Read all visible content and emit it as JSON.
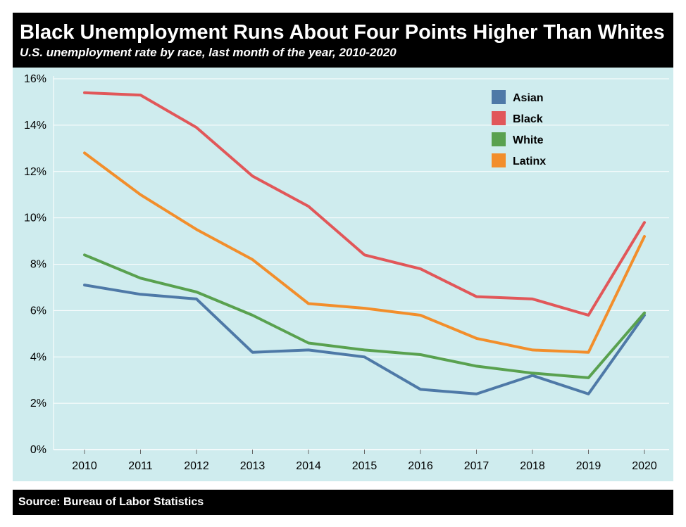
{
  "header": {
    "title": "Black Unemployment Runs About Four Points Higher Than Whites",
    "subtitle": "U.S. unemployment rate by race, last month of the year, 2010-2020"
  },
  "footer": {
    "source": "Source: Bureau of Labor Statistics"
  },
  "colors": {
    "plot_background": "#cfecee",
    "gridline": "#ffffff",
    "header_background": "#000000",
    "header_text": "#ffffff"
  },
  "chart_data": {
    "type": "line",
    "title": "Black Unemployment Runs About Four Points Higher Than Whites",
    "subtitle": "U.S. unemployment rate by race, last month of the year, 2010-2020",
    "xlabel": "",
    "ylabel": "",
    "x": [
      2010,
      2011,
      2012,
      2013,
      2014,
      2015,
      2016,
      2017,
      2018,
      2019,
      2020
    ],
    "y_ticks": [
      "0%",
      "2%",
      "4%",
      "6%",
      "8%",
      "10%",
      "12%",
      "14%",
      "16%"
    ],
    "ylim": [
      0,
      16
    ],
    "grid": true,
    "legend_position": "top-right",
    "series": [
      {
        "name": "Asian",
        "color": "#4e79a7",
        "values": [
          7.1,
          6.7,
          6.5,
          4.2,
          4.3,
          4.0,
          2.6,
          2.4,
          3.2,
          2.4,
          5.8
        ]
      },
      {
        "name": "Black",
        "color": "#e15759",
        "values": [
          15.4,
          15.3,
          13.9,
          11.8,
          10.5,
          8.4,
          7.8,
          6.6,
          6.5,
          5.8,
          9.8
        ]
      },
      {
        "name": "White",
        "color": "#59a14f",
        "values": [
          8.4,
          7.4,
          6.8,
          5.8,
          4.6,
          4.3,
          4.1,
          3.6,
          3.3,
          3.1,
          5.9
        ]
      },
      {
        "name": "Latinx",
        "color": "#f28e2b",
        "values": [
          12.8,
          11.0,
          9.5,
          8.2,
          6.3,
          6.1,
          5.8,
          4.8,
          4.3,
          4.2,
          9.2
        ]
      }
    ]
  }
}
